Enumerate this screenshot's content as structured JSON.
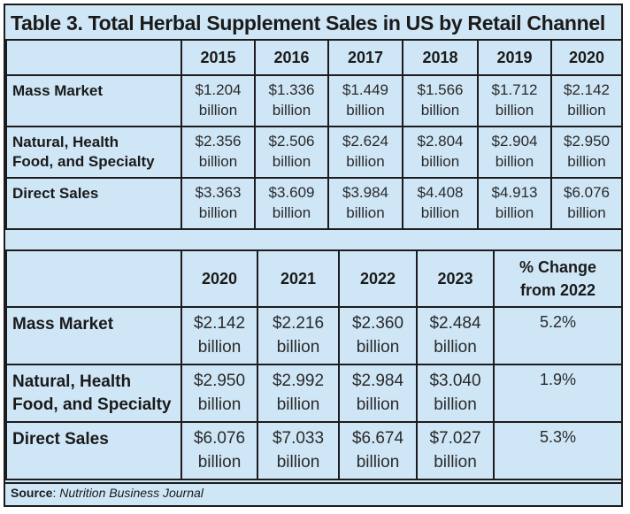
{
  "title": "Table 3. Total Herbal Supplement Sales in US by Retail Channel",
  "table1": {
    "years": [
      "2015",
      "2016",
      "2017",
      "2018",
      "2019",
      "2020"
    ],
    "rows": [
      {
        "label_lines": [
          "Mass Market"
        ],
        "values": [
          [
            "$1.204",
            "billion"
          ],
          [
            "$1.336",
            "billion"
          ],
          [
            "$1.449",
            "billion"
          ],
          [
            "$1.566",
            "billion"
          ],
          [
            "$1.712",
            "billion"
          ],
          [
            "$2.142",
            "billion"
          ]
        ]
      },
      {
        "label_lines": [
          "Natural, Health",
          "Food, and Specialty"
        ],
        "values": [
          [
            "$2.356",
            "billion"
          ],
          [
            "$2.506",
            "billion"
          ],
          [
            "$2.624",
            "billion"
          ],
          [
            "$2.804",
            "billion"
          ],
          [
            "$2.904",
            "billion"
          ],
          [
            "$2.950",
            "billion"
          ]
        ]
      },
      {
        "label_lines": [
          "Direct Sales"
        ],
        "values": [
          [
            "$3.363",
            "billion"
          ],
          [
            "$3.609",
            "billion"
          ],
          [
            "$3.984",
            "billion"
          ],
          [
            "$4.408",
            "billion"
          ],
          [
            "$4.913",
            "billion"
          ],
          [
            "$6.076",
            "billion"
          ]
        ]
      }
    ]
  },
  "table2": {
    "years": [
      "2020",
      "2021",
      "2022",
      "2023"
    ],
    "change_header_lines": [
      "% Change",
      "from 2022"
    ],
    "rows": [
      {
        "label_lines": [
          "Mass Market"
        ],
        "values": [
          [
            "$2.142",
            "billion"
          ],
          [
            "$2.216",
            "billion"
          ],
          [
            "$2.360",
            "billion"
          ],
          [
            "$2.484",
            "billion"
          ]
        ],
        "change": "5.2%"
      },
      {
        "label_lines": [
          "Natural, Health",
          "Food, and Specialty"
        ],
        "values": [
          [
            "$2.950",
            "billion"
          ],
          [
            "$2.992",
            "billion"
          ],
          [
            "$2.984",
            "billion"
          ],
          [
            "$3.040",
            "billion"
          ]
        ],
        "change": "1.9%"
      },
      {
        "label_lines": [
          "Direct Sales"
        ],
        "values": [
          [
            "$6.076",
            "billion"
          ],
          [
            "$7.033",
            "billion"
          ],
          [
            "$6.674",
            "billion"
          ],
          [
            "$7.027",
            "billion"
          ]
        ],
        "change": "5.3%"
      }
    ]
  },
  "source": {
    "label": "Source",
    "separator": ": ",
    "text": "Nutrition Business Journal"
  }
}
